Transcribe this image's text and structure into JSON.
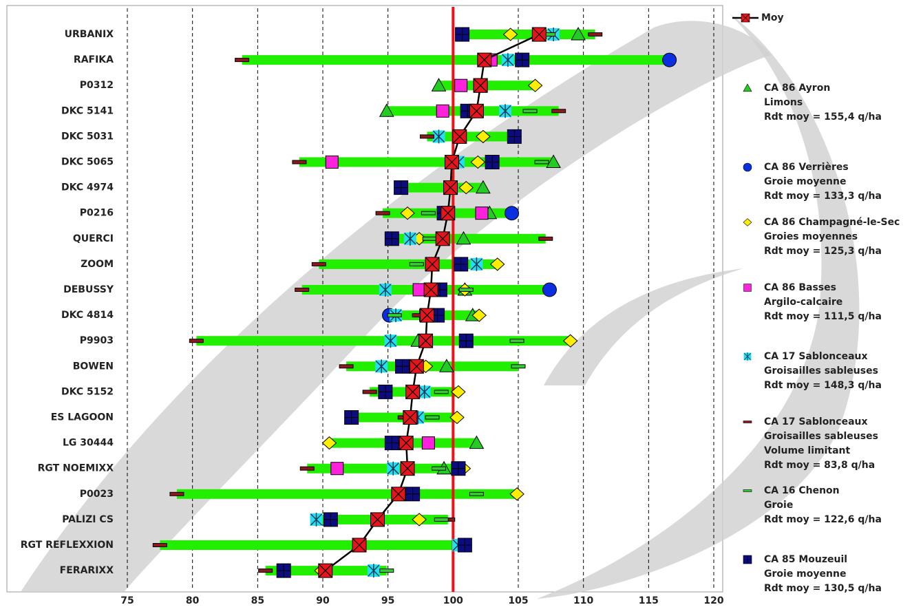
{
  "chart_data": {
    "type": "dotrange",
    "categories": [
      "URBANIX",
      "RAFIKA",
      "P0312",
      "DKC 5141",
      "DKC 5031",
      "DKC 5065",
      "DKC 4974",
      "P0216",
      "QUERCI",
      "ZOOM",
      "DEBUSSY",
      "DKC 4814",
      "P9903",
      "BOWEN",
      "DKC 5152",
      "ES LAGOON",
      "LG 30444",
      "RGT NOEMIXX",
      "P0023",
      "PALIZI CS",
      "RGT REFLEXXION",
      "FERARIXX"
    ],
    "xlim": [
      75,
      120
    ],
    "xticks": [
      75,
      80,
      85,
      90,
      95,
      100,
      105,
      110,
      115,
      120
    ],
    "grid": true,
    "refline": 100,
    "refline_color": "#e8141c",
    "range_color": "#22ee00",
    "series": [
      {
        "name": "Moy",
        "details": [],
        "color": "#e8141c",
        "marker": "xsquare",
        "line": true,
        "values": [
          106.6,
          102.4,
          102.1,
          101.8,
          100.5,
          99.9,
          99.8,
          99.6,
          99.2,
          98.4,
          98.3,
          98.0,
          97.9,
          97.2,
          96.9,
          96.7,
          96.4,
          96.5,
          95.8,
          94.2,
          92.8,
          90.2
        ]
      },
      {
        "name": "CA 86 Ayron",
        "details": [
          "Limons",
          "Rdt moy = 155,4 q/ha"
        ],
        "color": "#22cc22",
        "marker": "triangle",
        "values": [
          109.6,
          null,
          98.9,
          94.9,
          null,
          107.7,
          102.3,
          102.8,
          100.8,
          null,
          100.9,
          101.5,
          97.3,
          99.5,
          null,
          null,
          101.8,
          99.3,
          null,
          null,
          null,
          null
        ]
      },
      {
        "name": "CA 86 Verrières",
        "details": [
          "Groie moyenne",
          "Rdt moy = 133,3 q/ha"
        ],
        "color": "#0a2ee0",
        "marker": "circle",
        "values": [
          null,
          116.6,
          null,
          null,
          null,
          null,
          null,
          104.5,
          null,
          null,
          107.4,
          95.1,
          null,
          null,
          null,
          null,
          null,
          null,
          null,
          null,
          null,
          null
        ]
      },
      {
        "name": "CA 86 Champagné-le-Sec",
        "details": [
          "Groies moyennes",
          "Rdt moy = 125,3 q/ha"
        ],
        "color": "#ffee00",
        "marker": "diamond",
        "values": [
          104.4,
          null,
          106.3,
          null,
          102.3,
          101.9,
          101.0,
          96.5,
          97.4,
          103.4,
          100.9,
          102.0,
          109.0,
          97.9,
          100.4,
          100.3,
          90.5,
          100.8,
          104.9,
          97.4,
          null,
          89.9
        ]
      },
      {
        "name": "CA 86 Basses",
        "details": [
          "Argilo-calcaire",
          "Rdt moy = 111,5 q/ha"
        ],
        "color": "#ff22dd",
        "marker": "square",
        "values": [
          null,
          102.9,
          100.6,
          99.2,
          null,
          90.7,
          null,
          102.2,
          null,
          null,
          97.4,
          97.9,
          null,
          null,
          null,
          null,
          98.1,
          91.1,
          null,
          null,
          null,
          null
        ]
      },
      {
        "name": "CA 17 Sablonceaux",
        "details": [
          "Groisailles sableuses",
          "Rdt moy = 148,3 q/ha"
        ],
        "color": "#22e0f0",
        "marker": "star",
        "values": [
          107.7,
          104.2,
          null,
          104.0,
          98.9,
          100.4,
          null,
          99.7,
          96.7,
          101.8,
          94.8,
          95.6,
          95.2,
          94.5,
          97.8,
          97.3,
          null,
          95.4,
          96.2,
          89.5,
          100.4,
          93.9
        ]
      },
      {
        "name": "CA 17 Sablonceaux",
        "details": [
          "Groisailles sableuses",
          "Volume limitant",
          "Rdt moy = 83,8 q/ha"
        ],
        "color": "#8b1a1a",
        "marker": "dash",
        "values": [
          110.9,
          83.8,
          null,
          108.1,
          98.0,
          88.2,
          null,
          94.6,
          107.1,
          89.7,
          88.4,
          97.4,
          80.3,
          91.8,
          93.6,
          96.3,
          null,
          88.8,
          78.8,
          99.6,
          77.5,
          85.6
        ]
      },
      {
        "name": "CA 16 Chenon",
        "details": [
          "Groie",
          "Rdt moy = 122,6 q/ha"
        ],
        "color": "#33cc33",
        "marker": "dash",
        "values": [
          107.3,
          null,
          null,
          105.9,
          null,
          106.8,
          null,
          98.1,
          98.2,
          97.2,
          101.0,
          95.5,
          104.9,
          105.0,
          99.1,
          98.4,
          null,
          98.9,
          101.8,
          99.1,
          null,
          94.9
        ]
      },
      {
        "name": "CA 85 Mouzeuil",
        "details": [
          "Groie moyenne",
          "Rdt moy = 130,5 q/ha"
        ],
        "color": "#0c0c80",
        "marker": "plussquare",
        "values": [
          100.7,
          105.3,
          102.1,
          101.1,
          104.7,
          103.0,
          96.0,
          99.3,
          95.3,
          100.6,
          99.0,
          98.8,
          101.0,
          96.1,
          94.8,
          92.2,
          95.3,
          100.4,
          96.9,
          90.6,
          100.9,
          87.0
        ]
      }
    ]
  }
}
